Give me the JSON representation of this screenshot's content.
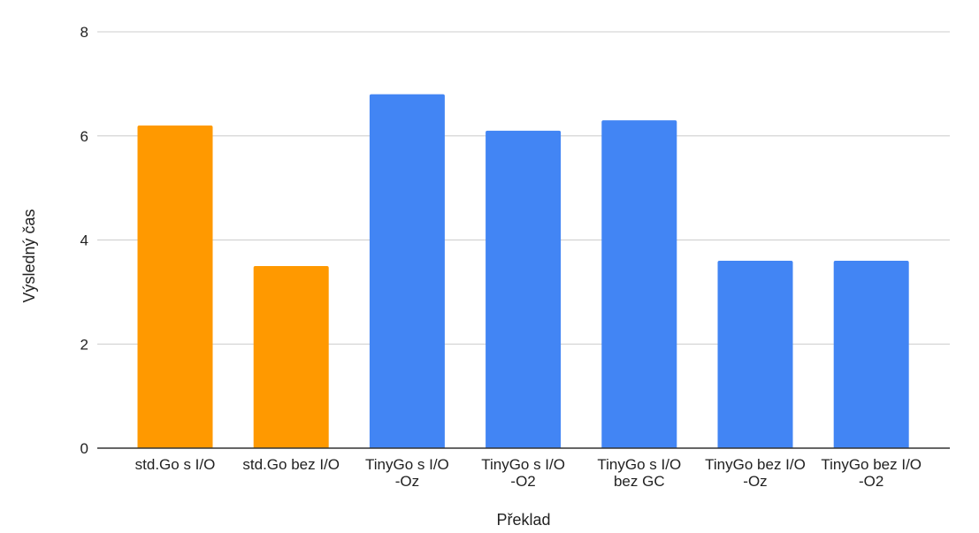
{
  "chart_data": {
    "type": "bar",
    "title": "",
    "xlabel": "Překlad",
    "ylabel": "Výsledný čas",
    "ylim": [
      0,
      8
    ],
    "yticks": [
      0,
      2,
      4,
      6,
      8
    ],
    "grid": true,
    "legend": "none",
    "categories": [
      [
        "std.Go s I/O"
      ],
      [
        "std.Go bez I/O"
      ],
      [
        "TinyGo s I/O",
        "-Oz"
      ],
      [
        "TinyGo s I/O",
        "-O2"
      ],
      [
        "TinyGo s I/O",
        "bez GC"
      ],
      [
        "TinyGo bez I/O",
        "-Oz"
      ],
      [
        "TinyGo bez I/O",
        "-O2"
      ]
    ],
    "values": [
      6.2,
      3.5,
      6.8,
      6.1,
      6.3,
      3.6,
      3.6
    ],
    "colors": [
      "#FF9900",
      "#FF9900",
      "#4285F4",
      "#4285F4",
      "#4285F4",
      "#4285F4",
      "#4285F4"
    ],
    "gridline_color": "#cccccc",
    "axis_color": "#333333"
  }
}
